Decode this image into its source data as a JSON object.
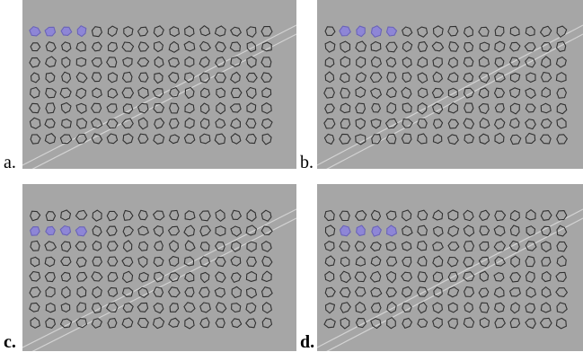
{
  "panels": [
    {
      "label": "a.",
      "label_bold": false,
      "highlight": {
        "row": 0,
        "col_start": 0,
        "count": 4
      }
    },
    {
      "label": "b.",
      "label_bold": false,
      "highlight": {
        "row": 0,
        "col_start": 1,
        "count": 4
      }
    },
    {
      "label": "c.",
      "label_bold": true,
      "highlight": {
        "row": 1,
        "col_start": 0,
        "count": 4
      }
    },
    {
      "label": "d.",
      "label_bold": true,
      "highlight": {
        "row": 1,
        "col_start": 1,
        "count": 4
      }
    }
  ],
  "grid": {
    "rows": 8,
    "cols": 16
  },
  "colors": {
    "background": "#a6a6a6",
    "outline": "#303030",
    "highlight_fill": "#8e86d6",
    "highlight_stroke": "#6a63b8",
    "streak": "#dcdcdc"
  }
}
